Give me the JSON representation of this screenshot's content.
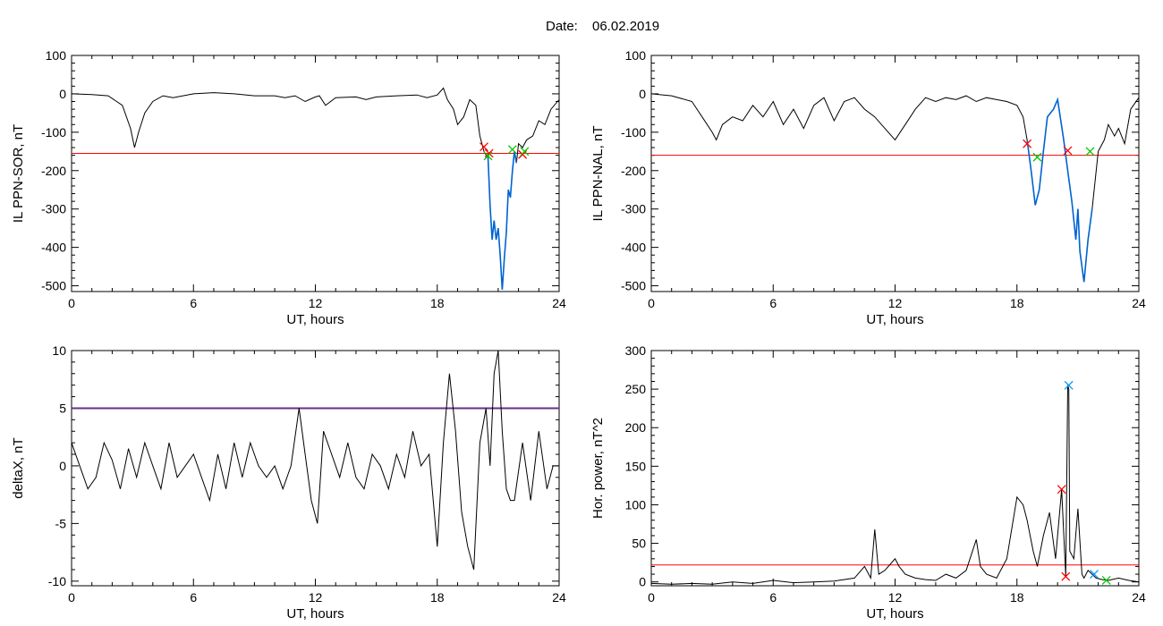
{
  "header": {
    "date_label": "Date:",
    "date_value": "06.02.2019"
  },
  "colors": {
    "trace": "#000000",
    "threshold": "#ff0000",
    "threshold_panel3": "#6a2f8a",
    "substorm_segment": "#0064d2",
    "marker_onset": "#ff0000",
    "marker_end": "#00c800",
    "marker_peak": "#0096ff"
  },
  "chart_data": [
    {
      "type": "line",
      "xlabel": "UT, hours",
      "ylabel": "IL PPN-SOR, nT",
      "xlim": [
        0,
        24
      ],
      "ylim": [
        -515,
        100
      ],
      "xticks": [
        0,
        6,
        12,
        18,
        24
      ],
      "yticks": [
        100,
        0,
        -100,
        -200,
        -300,
        -400,
        -500
      ],
      "threshold": -155,
      "x": [
        0,
        1,
        1.8,
        2.5,
        2.9,
        3.1,
        3.3,
        3.6,
        4,
        4.5,
        5,
        6,
        7,
        8,
        9,
        10,
        10.5,
        11,
        11.5,
        12,
        12.2,
        12.5,
        13,
        14,
        14.5,
        15,
        16,
        17,
        17.5,
        18,
        18.3,
        18.5,
        18.8,
        19,
        19.3,
        19.6,
        19.9,
        20.1,
        20.3,
        20.4,
        20.5,
        20.6,
        20.7,
        20.8,
        20.9,
        21,
        21.1,
        21.2,
        21.3,
        21.4,
        21.5,
        21.6,
        21.7,
        21.8,
        21.9,
        22,
        22.2,
        22.4,
        22.7,
        23,
        23.3,
        23.6,
        24
      ],
      "y": [
        0,
        -2,
        -5,
        -30,
        -90,
        -140,
        -100,
        -50,
        -20,
        -5,
        -10,
        0,
        3,
        0,
        -5,
        -5,
        -10,
        -5,
        -20,
        -8,
        -5,
        -30,
        -10,
        -8,
        -15,
        -8,
        -5,
        -3,
        -10,
        -3,
        15,
        -15,
        -40,
        -80,
        -60,
        -15,
        -30,
        -110,
        -150,
        -160,
        -165,
        -290,
        -380,
        -330,
        -380,
        -350,
        -420,
        -510,
        -430,
        -360,
        -250,
        -270,
        -200,
        -150,
        -180,
        -130,
        -140,
        -120,
        -110,
        -70,
        -80,
        -40,
        -15
      ],
      "substorm_range": [
        20.4,
        21.9
      ],
      "markers": [
        {
          "x": 20.3,
          "y": -138,
          "kind": "onset"
        },
        {
          "x": 20.55,
          "y": -155,
          "kind": "onset"
        },
        {
          "x": 20.5,
          "y": -162,
          "kind": "end"
        },
        {
          "x": 21.7,
          "y": -145,
          "kind": "end"
        },
        {
          "x": 22.2,
          "y": -158,
          "kind": "onset"
        },
        {
          "x": 22.3,
          "y": -150,
          "kind": "end"
        }
      ]
    },
    {
      "type": "line",
      "xlabel": "UT, hours",
      "ylabel": "IL PPN-NAL, nT",
      "xlim": [
        0,
        24
      ],
      "ylim": [
        -515,
        100
      ],
      "xticks": [
        0,
        6,
        12,
        18,
        24
      ],
      "yticks": [
        100,
        0,
        -100,
        -200,
        -300,
        -400,
        -500
      ],
      "threshold": -160,
      "x": [
        0,
        1,
        2,
        2.5,
        3,
        3.2,
        3.5,
        4,
        4.5,
        5,
        5.5,
        6,
        6.5,
        7,
        7.5,
        8,
        8.5,
        9,
        9.5,
        10,
        10.5,
        11,
        11.5,
        12,
        12.5,
        13,
        13.5,
        14,
        14.5,
        15,
        15.5,
        16,
        16.5,
        17,
        17.5,
        18,
        18.3,
        18.5,
        18.7,
        18.9,
        19.1,
        19.3,
        19.5,
        19.8,
        20,
        20.3,
        20.5,
        20.7,
        20.9,
        21,
        21.1,
        21.2,
        21.3,
        21.5,
        21.7,
        22,
        22.3,
        22.5,
        22.8,
        23,
        23.3,
        23.6,
        24
      ],
      "y": [
        0,
        -5,
        -20,
        -60,
        -100,
        -120,
        -80,
        -60,
        -70,
        -30,
        -60,
        -20,
        -80,
        -40,
        -90,
        -30,
        -10,
        -70,
        -20,
        -10,
        -40,
        -60,
        -90,
        -120,
        -80,
        -40,
        -10,
        -20,
        -10,
        -15,
        -5,
        -20,
        -10,
        -15,
        -20,
        -30,
        -60,
        -120,
        -200,
        -290,
        -250,
        -150,
        -60,
        -40,
        -15,
        -120,
        -200,
        -280,
        -380,
        -300,
        -410,
        -450,
        -490,
        -380,
        -300,
        -150,
        -120,
        -80,
        -110,
        -90,
        -130,
        -40,
        -10
      ],
      "substorm_range": [
        18.5,
        21.9
      ],
      "markers": [
        {
          "x": 18.5,
          "y": -130,
          "kind": "onset"
        },
        {
          "x": 19.0,
          "y": -165,
          "kind": "end"
        },
        {
          "x": 20.5,
          "y": -148,
          "kind": "onset"
        },
        {
          "x": 21.6,
          "y": -150,
          "kind": "end"
        }
      ]
    },
    {
      "type": "line",
      "xlabel": "UT, hours",
      "ylabel": "deltaX, nT",
      "xlim": [
        0,
        24
      ],
      "ylim": [
        -10.4,
        10
      ],
      "xticks": [
        0,
        6,
        12,
        18,
        24
      ],
      "yticks": [
        10,
        5,
        0,
        -5,
        -10
      ],
      "threshold": 5,
      "x": [
        0,
        0.4,
        0.8,
        1.2,
        1.6,
        2,
        2.4,
        2.8,
        3.2,
        3.6,
        4,
        4.4,
        4.8,
        5.2,
        5.6,
        6,
        6.4,
        6.8,
        7.2,
        7.6,
        8,
        8.4,
        8.8,
        9.2,
        9.6,
        10,
        10.4,
        10.8,
        11.2,
        11.5,
        11.8,
        12.1,
        12.4,
        12.8,
        13.2,
        13.6,
        14,
        14.4,
        14.8,
        15.2,
        15.6,
        16,
        16.4,
        16.8,
        17.2,
        17.6,
        18,
        18.3,
        18.6,
        18.9,
        19.2,
        19.5,
        19.8,
        20.1,
        20.4,
        20.6,
        20.8,
        21,
        21.2,
        21.4,
        21.6,
        21.8,
        22.2,
        22.6,
        23,
        23.4,
        23.7,
        24
      ],
      "y": [
        2,
        0,
        -2,
        -1,
        2,
        0.5,
        -2,
        1.5,
        -1,
        2,
        0,
        -2,
        2,
        -1,
        0,
        1,
        -1,
        -3,
        1,
        -2,
        2,
        -1,
        2,
        0,
        -1,
        0,
        -2,
        0,
        5,
        1,
        -3,
        -5,
        3,
        1,
        -1,
        2,
        -1,
        -2,
        1,
        0,
        -2,
        1,
        -1,
        3,
        0,
        1,
        -7,
        2,
        8,
        3,
        -4,
        -7,
        -9,
        2,
        5,
        0,
        8,
        10,
        3,
        -2,
        -3,
        -3,
        2,
        -3,
        3,
        -2,
        0,
        0
      ],
      "markers": []
    },
    {
      "type": "line",
      "xlabel": "UT, hours",
      "ylabel": "Hor. power, nT^2",
      "xlim": [
        0,
        24
      ],
      "ylim": [
        -5,
        300
      ],
      "xticks": [
        0,
        6,
        12,
        18,
        24
      ],
      "yticks": [
        300,
        250,
        200,
        150,
        100,
        50,
        0
      ],
      "threshold": 22,
      "x": [
        0,
        1,
        2,
        3,
        4,
        5,
        6,
        7,
        8,
        9,
        10,
        10.5,
        10.8,
        11,
        11.2,
        11.5,
        12,
        12.2,
        12.5,
        13,
        13.5,
        14,
        14.5,
        15,
        15.5,
        16,
        16.2,
        16.5,
        17,
        17.5,
        18,
        18.3,
        18.5,
        18.8,
        19,
        19.3,
        19.6,
        19.9,
        20.2,
        20.4,
        20.5,
        20.55,
        20.6,
        20.8,
        21,
        21.2,
        21.3,
        21.5,
        21.7,
        21.9,
        22.2,
        22.5,
        23,
        23.5,
        24
      ],
      "y": [
        -2,
        -3,
        -2,
        -3,
        0,
        -2,
        2,
        -1,
        0,
        1,
        5,
        20,
        5,
        68,
        10,
        15,
        30,
        20,
        10,
        5,
        3,
        2,
        10,
        5,
        15,
        55,
        20,
        10,
        5,
        30,
        110,
        100,
        80,
        40,
        20,
        60,
        90,
        30,
        120,
        7,
        255,
        250,
        40,
        30,
        95,
        10,
        5,
        15,
        10,
        5,
        3,
        2,
        5,
        2,
        0
      ],
      "markers": [
        {
          "x": 20.2,
          "y": 120,
          "kind": "onset"
        },
        {
          "x": 20.4,
          "y": 7,
          "kind": "onset"
        },
        {
          "x": 20.55,
          "y": 255,
          "kind": "peak"
        },
        {
          "x": 21.8,
          "y": 10,
          "kind": "peak"
        },
        {
          "x": 22.4,
          "y": 2,
          "kind": "end"
        }
      ]
    }
  ]
}
